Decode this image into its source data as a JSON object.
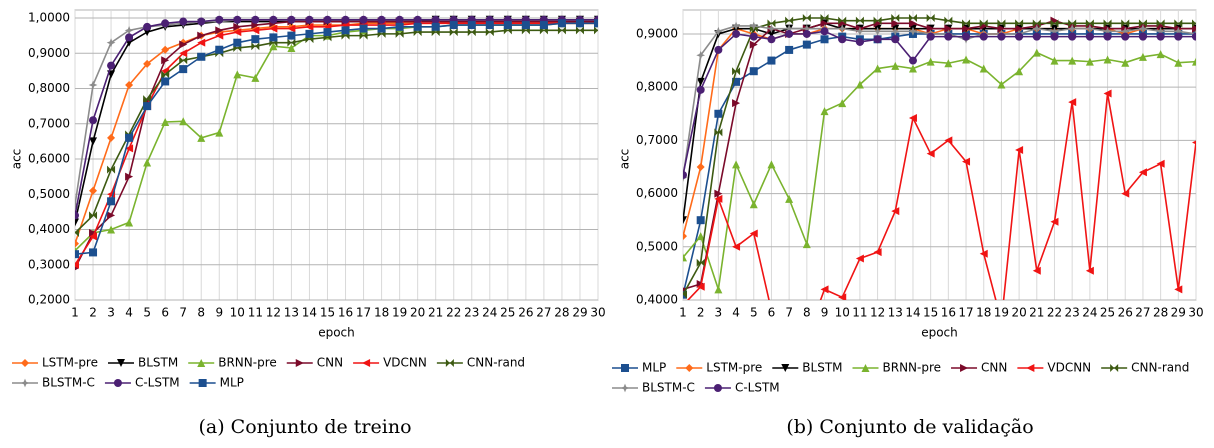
{
  "chart_data": [
    {
      "type": "line",
      "caption": "(a) Conjunto de treino",
      "xlabel": "epoch",
      "ylabel": "acc",
      "grid": true,
      "categories": [
        "1",
        "2",
        "3",
        "4",
        "5",
        "6",
        "7",
        "8",
        "9",
        "10",
        "11",
        "12",
        "13",
        "14",
        "15",
        "16",
        "17",
        "18",
        "19",
        "20",
        "21",
        "22",
        "23",
        "24",
        "25",
        "26",
        "27",
        "28",
        "29",
        "30"
      ],
      "ylim": [
        0.2,
        1.0
      ],
      "yticks": [
        {
          "value": 0.2,
          "label": "0,2000"
        },
        {
          "value": 0.3,
          "label": "0,3000"
        },
        {
          "value": 0.4,
          "label": "0,4000"
        },
        {
          "value": 0.5,
          "label": "0,5000"
        },
        {
          "value": 0.6,
          "label": "0,6000"
        },
        {
          "value": 0.7,
          "label": "0,7000"
        },
        {
          "value": 0.8,
          "label": "0,8000"
        },
        {
          "value": 0.9,
          "label": "0,9000"
        },
        {
          "value": 1.0,
          "label": "1,0000"
        }
      ],
      "series": [
        {
          "name": "LSTM-pre",
          "color": "#ff6b1a",
          "marker": "diamond",
          "values": [
            0.36,
            0.51,
            0.66,
            0.81,
            0.87,
            0.91,
            0.93,
            0.95,
            0.96,
            0.965,
            0.97,
            0.975,
            0.975,
            0.98,
            0.98,
            0.98,
            0.985,
            0.985,
            0.985,
            0.985,
            0.985,
            0.99,
            0.99,
            0.99,
            0.99,
            0.99,
            0.99,
            0.99,
            0.99,
            0.99
          ]
        },
        {
          "name": "BLSTM",
          "color": "#000000",
          "marker": "tri-down",
          "values": [
            0.42,
            0.65,
            0.84,
            0.93,
            0.96,
            0.975,
            0.98,
            0.985,
            0.99,
            0.99,
            0.99,
            0.99,
            0.99,
            0.99,
            0.99,
            0.99,
            0.99,
            0.99,
            0.99,
            0.99,
            0.995,
            0.995,
            0.995,
            0.995,
            0.995,
            0.995,
            0.995,
            0.995,
            0.995,
            0.995
          ]
        },
        {
          "name": "BRNN-pre",
          "color": "#7ab32e",
          "marker": "tri-up",
          "values": [
            0.34,
            0.39,
            0.4,
            0.42,
            0.59,
            0.705,
            0.707,
            0.66,
            0.675,
            0.84,
            0.83,
            0.92,
            0.915,
            0.95,
            0.95,
            0.96,
            0.965,
            0.97,
            0.97,
            0.975,
            0.975,
            0.98,
            0.98,
            0.98,
            0.98,
            0.98,
            0.98,
            0.985,
            0.985,
            0.985
          ]
        },
        {
          "name": "CNN",
          "color": "#7b0a2a",
          "marker": "tri-right",
          "values": [
            0.29,
            0.39,
            0.44,
            0.55,
            0.76,
            0.88,
            0.925,
            0.95,
            0.965,
            0.975,
            0.98,
            0.985,
            0.99,
            0.99,
            0.99,
            0.99,
            0.99,
            0.99,
            0.99,
            0.99,
            0.99,
            0.99,
            0.99,
            0.99,
            0.99,
            0.99,
            0.99,
            0.99,
            0.99,
            0.99
          ]
        },
        {
          "name": "VDCNN",
          "color": "#f01414",
          "marker": "tri-left",
          "values": [
            0.3,
            0.38,
            0.5,
            0.63,
            0.75,
            0.85,
            0.9,
            0.93,
            0.95,
            0.96,
            0.965,
            0.97,
            0.97,
            0.975,
            0.975,
            0.98,
            0.98,
            0.98,
            0.98,
            0.985,
            0.985,
            0.985,
            0.985,
            0.985,
            0.985,
            0.985,
            0.985,
            0.985,
            0.985,
            0.985
          ]
        },
        {
          "name": "CNN-rand",
          "color": "#3d5a12",
          "marker": "hourglass",
          "values": [
            0.39,
            0.44,
            0.57,
            0.67,
            0.77,
            0.84,
            0.88,
            0.89,
            0.9,
            0.915,
            0.92,
            0.93,
            0.93,
            0.94,
            0.945,
            0.95,
            0.95,
            0.955,
            0.955,
            0.96,
            0.96,
            0.96,
            0.96,
            0.96,
            0.965,
            0.965,
            0.965,
            0.965,
            0.965,
            0.965
          ]
        },
        {
          "name": "BLSTM-C",
          "color": "#8c8c8c",
          "marker": "star",
          "values": [
            0.47,
            0.81,
            0.93,
            0.965,
            0.975,
            0.98,
            0.985,
            0.99,
            0.99,
            0.995,
            0.995,
            0.995,
            0.995,
            0.995,
            0.995,
            0.995,
            0.995,
            0.995,
            0.995,
            0.995,
            0.995,
            0.995,
            0.995,
            0.995,
            0.995,
            0.995,
            0.995,
            0.995,
            0.995,
            0.995
          ]
        },
        {
          "name": "C-LSTM",
          "color": "#4b2073",
          "marker": "circle",
          "values": [
            0.44,
            0.71,
            0.865,
            0.945,
            0.975,
            0.985,
            0.99,
            0.99,
            0.995,
            0.995,
            0.995,
            0.995,
            0.995,
            0.995,
            0.995,
            0.995,
            0.995,
            0.995,
            0.995,
            0.995,
            0.995,
            0.995,
            0.995,
            0.995,
            0.995,
            0.995,
            0.995,
            0.995,
            0.995,
            0.995
          ]
        },
        {
          "name": "MLP",
          "color": "#1c4f8f",
          "marker": "square",
          "values": [
            0.33,
            0.335,
            0.48,
            0.66,
            0.75,
            0.82,
            0.855,
            0.89,
            0.91,
            0.93,
            0.94,
            0.945,
            0.95,
            0.955,
            0.96,
            0.965,
            0.97,
            0.97,
            0.975,
            0.975,
            0.975,
            0.98,
            0.98,
            0.98,
            0.98,
            0.98,
            0.98,
            0.985,
            0.985,
            0.985
          ]
        }
      ]
    },
    {
      "type": "line",
      "caption": "(b) Conjunto de validação",
      "xlabel": "epoch",
      "ylabel": "acc",
      "grid": true,
      "categories": [
        "1",
        "2",
        "3",
        "4",
        "5",
        "6",
        "7",
        "8",
        "9",
        "10",
        "11",
        "12",
        "13",
        "14",
        "15",
        "16",
        "17",
        "18",
        "19",
        "20",
        "21",
        "22",
        "23",
        "24",
        "25",
        "26",
        "27",
        "28",
        "29",
        "30"
      ],
      "ylim": [
        0.4,
        0.93
      ],
      "yticks": [
        {
          "value": 0.4,
          "label": "0,4000"
        },
        {
          "value": 0.5,
          "label": "0,5000"
        },
        {
          "value": 0.6,
          "label": "0,6000"
        },
        {
          "value": 0.7,
          "label": "0,7000"
        },
        {
          "value": 0.8,
          "label": "0,8000"
        },
        {
          "value": 0.9,
          "label": "0,9000"
        }
      ],
      "series": [
        {
          "name": "MLP",
          "color": "#1c4f8f",
          "marker": "square",
          "values": [
            0.41,
            0.55,
            0.75,
            0.81,
            0.83,
            0.85,
            0.87,
            0.88,
            0.89,
            0.895,
            0.89,
            0.89,
            0.895,
            0.9,
            0.9,
            0.9,
            0.9,
            0.9,
            0.9,
            0.9,
            0.9,
            0.9,
            0.9,
            0.9,
            0.9,
            0.9,
            0.9,
            0.9,
            0.9,
            0.9
          ]
        },
        {
          "name": "LSTM-pre",
          "color": "#ff6b1a",
          "marker": "diamond",
          "values": [
            0.52,
            0.65,
            0.87,
            0.91,
            0.9,
            0.89,
            0.9,
            0.9,
            0.91,
            0.91,
            0.91,
            0.91,
            0.91,
            0.91,
            0.9,
            0.91,
            0.91,
            0.9,
            0.9,
            0.91,
            0.91,
            0.91,
            0.91,
            0.91,
            0.91,
            0.9,
            0.91,
            0.91,
            0.91,
            0.91
          ]
        },
        {
          "name": "BLSTM",
          "color": "#000000",
          "marker": "tri-down",
          "values": [
            0.55,
            0.81,
            0.9,
            0.91,
            0.91,
            0.9,
            0.91,
            0.91,
            0.92,
            0.91,
            0.91,
            0.91,
            0.91,
            0.91,
            0.91,
            0.91,
            0.91,
            0.91,
            0.91,
            0.91,
            0.91,
            0.91,
            0.91,
            0.91,
            0.91,
            0.91,
            0.91,
            0.91,
            0.91,
            0.91
          ]
        },
        {
          "name": "BRNN-pre",
          "color": "#7ab32e",
          "marker": "tri-up",
          "values": [
            0.48,
            0.52,
            0.42,
            0.655,
            0.58,
            0.655,
            0.59,
            0.505,
            0.755,
            0.77,
            0.805,
            0.835,
            0.84,
            0.835,
            0.848,
            0.845,
            0.852,
            0.835,
            0.805,
            0.83,
            0.865,
            0.85,
            0.85,
            0.848,
            0.852,
            0.846,
            0.857,
            0.862,
            0.846,
            0.848
          ]
        },
        {
          "name": "CNN",
          "color": "#7b0a2a",
          "marker": "tri-right",
          "values": [
            0.42,
            0.43,
            0.6,
            0.77,
            0.88,
            0.91,
            0.9,
            0.91,
            0.92,
            0.92,
            0.91,
            0.92,
            0.92,
            0.92,
            0.91,
            0.91,
            0.91,
            0.915,
            0.91,
            0.91,
            0.915,
            0.925,
            0.915,
            0.915,
            0.91,
            0.91,
            0.915,
            0.915,
            0.91,
            0.91
          ]
        },
        {
          "name": "VDCNN",
          "color": "#f01414",
          "marker": "tri-left",
          "values": [
            0.39,
            0.425,
            0.59,
            0.5,
            0.525,
            0.38,
            0.35,
            0.33,
            0.42,
            0.405,
            0.478,
            0.49,
            0.567,
            0.742,
            0.675,
            0.7,
            0.66,
            0.487,
            0.36,
            0.682,
            0.455,
            0.547,
            0.772,
            0.455,
            0.788,
            0.6,
            0.64,
            0.656,
            0.42,
            0.696
          ]
        },
        {
          "name": "CNN-rand",
          "color": "#3d5a12",
          "marker": "hourglass",
          "values": [
            0.41,
            0.47,
            0.715,
            0.83,
            0.91,
            0.92,
            0.925,
            0.93,
            0.93,
            0.925,
            0.925,
            0.925,
            0.93,
            0.93,
            0.93,
            0.925,
            0.92,
            0.92,
            0.92,
            0.92,
            0.92,
            0.92,
            0.92,
            0.92,
            0.92,
            0.92,
            0.92,
            0.92,
            0.92,
            0.92
          ]
        },
        {
          "name": "BLSTM-C",
          "color": "#8c8c8c",
          "marker": "star",
          "values": [
            0.63,
            0.86,
            0.905,
            0.915,
            0.915,
            0.91,
            0.91,
            0.91,
            0.91,
            0.91,
            0.905,
            0.905,
            0.905,
            0.905,
            0.9,
            0.9,
            0.89,
            0.9,
            0.9,
            0.9,
            0.91,
            0.905,
            0.91,
            0.91,
            0.905,
            0.905,
            0.91,
            0.905,
            0.905,
            0.9
          ]
        },
        {
          "name": "C-LSTM",
          "color": "#4b2073",
          "marker": "circle",
          "values": [
            0.635,
            0.795,
            0.87,
            0.9,
            0.895,
            0.89,
            0.9,
            0.9,
            0.905,
            0.89,
            0.885,
            0.89,
            0.89,
            0.85,
            0.895,
            0.895,
            0.895,
            0.895,
            0.895,
            0.895,
            0.895,
            0.895,
            0.895,
            0.895,
            0.895,
            0.895,
            0.895,
            0.895,
            0.895,
            0.895
          ]
        }
      ]
    }
  ]
}
